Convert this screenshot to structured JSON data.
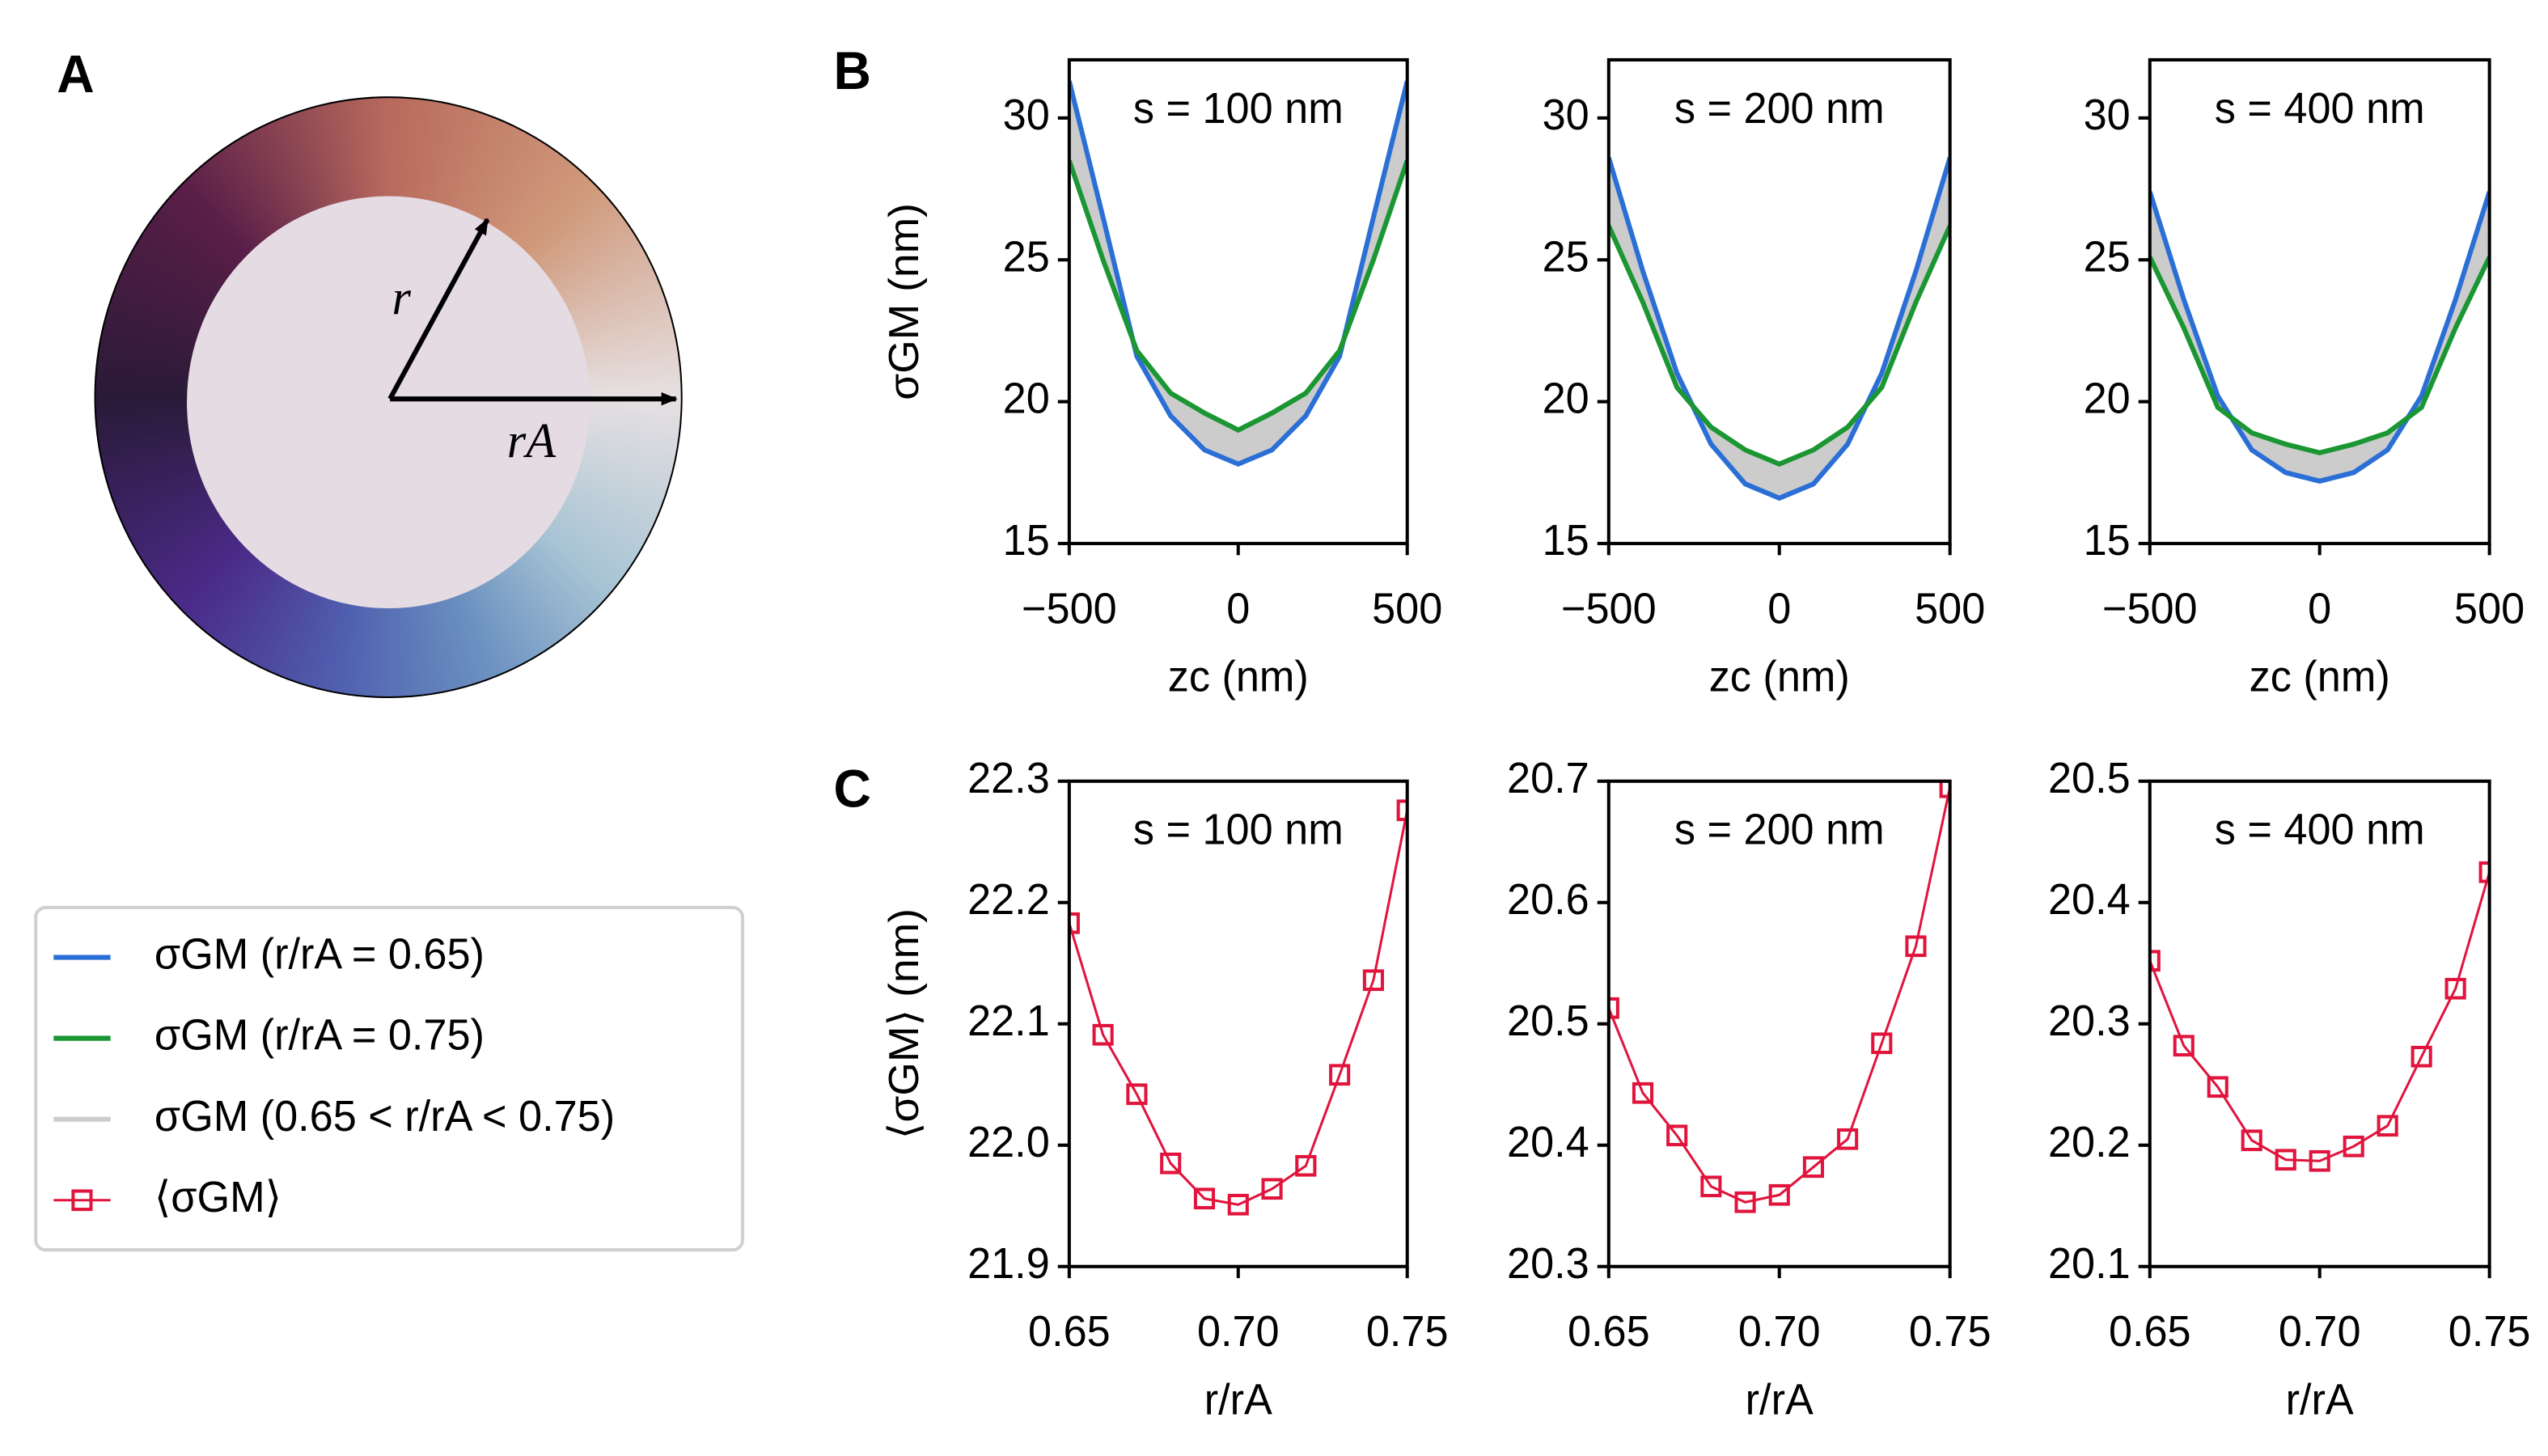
{
  "panel_labels": {
    "a": "A",
    "b": "B",
    "c": "C"
  },
  "diagram": {
    "r_label": "r",
    "ra_label": "rA"
  },
  "legend": {
    "entries": [
      {
        "name": "σGM (r/rA = 0.65)",
        "color": "#2b6fd6",
        "style": "line"
      },
      {
        "name": "σGM (r/rA = 0.75)",
        "color": "#1a9632",
        "style": "line"
      },
      {
        "name": "σGM (0.65 < r/rA < 0.75)",
        "color": "#cccccc",
        "style": "line"
      },
      {
        "name": "⟨σGM⟩",
        "color": "#e0143c",
        "style": "line-square"
      }
    ]
  },
  "chart_data": [
    {
      "type": "line",
      "annotation": "s = 100 nm",
      "xlabel": "zc (nm)",
      "ylabel": "σGM (nm)",
      "x": [
        -500,
        -400,
        -300,
        -200,
        -100,
        0,
        100,
        200,
        300,
        400,
        500
      ],
      "series": [
        {
          "color": "#2b6fd6",
          "values": [
            31.3,
            26.5,
            21.6,
            19.5,
            18.3,
            17.8,
            18.3,
            19.5,
            21.6,
            26.5,
            31.3
          ]
        },
        {
          "color": "#1a9632",
          "values": [
            28.5,
            25.0,
            21.8,
            20.3,
            19.6,
            19.0,
            19.6,
            20.3,
            21.8,
            25.0,
            28.5
          ]
        }
      ],
      "fill_between": {
        "series": [
          0,
          1
        ],
        "color": "#cccccc"
      },
      "xlim": [
        -500,
        500
      ],
      "ylim": [
        15,
        32.05
      ],
      "xticks": [
        {
          "value": -500,
          "label": "−500"
        },
        0,
        500
      ],
      "yticks": [
        15,
        20,
        25,
        30
      ]
    },
    {
      "type": "line",
      "annotation": "s = 200 nm",
      "xlabel": "zc (nm)",
      "x": [
        -500,
        -400,
        -300,
        -200,
        -100,
        0,
        100,
        200,
        300,
        400,
        500
      ],
      "series": [
        {
          "color": "#2b6fd6",
          "values": [
            28.6,
            24.6,
            21.0,
            18.5,
            17.1,
            16.6,
            17.1,
            18.5,
            21.0,
            24.6,
            28.6
          ]
        },
        {
          "color": "#1a9632",
          "values": [
            26.2,
            23.5,
            20.5,
            19.1,
            18.3,
            17.8,
            18.3,
            19.1,
            20.5,
            23.5,
            26.2
          ]
        }
      ],
      "fill_between": {
        "series": [
          0,
          1
        ],
        "color": "#cccccc"
      },
      "xlim": [
        -500,
        500
      ],
      "ylim": [
        15,
        32.05
      ],
      "xticks": [
        {
          "value": -500,
          "label": "−500"
        },
        0,
        500
      ],
      "yticks": [
        15,
        20,
        25,
        30
      ]
    },
    {
      "type": "line",
      "annotation": "s = 400 nm",
      "xlabel": "zc (nm)",
      "x": [
        -500,
        -400,
        -300,
        -200,
        -100,
        0,
        100,
        200,
        300,
        400,
        500
      ],
      "series": [
        {
          "color": "#2b6fd6",
          "values": [
            27.4,
            23.6,
            20.2,
            18.3,
            17.5,
            17.2,
            17.5,
            18.3,
            20.2,
            23.6,
            27.4
          ]
        },
        {
          "color": "#1a9632",
          "values": [
            25.1,
            22.6,
            19.8,
            18.9,
            18.5,
            18.2,
            18.5,
            18.9,
            19.8,
            22.6,
            25.1
          ]
        }
      ],
      "fill_between": {
        "series": [
          0,
          1
        ],
        "color": "#cccccc"
      },
      "xlim": [
        -500,
        500
      ],
      "ylim": [
        15,
        32.05
      ],
      "xticks": [
        {
          "value": -500,
          "label": "−500"
        },
        0,
        500
      ],
      "yticks": [
        15,
        20,
        25,
        30
      ]
    },
    {
      "type": "line",
      "annotation": "s = 100 nm",
      "xlabel": "r/rA",
      "ylabel": "⟨σGM⟩ (nm)",
      "x": [
        0.65,
        0.66,
        0.67,
        0.68,
        0.69,
        0.7,
        0.71,
        0.72,
        0.73,
        0.74,
        0.75
      ],
      "series": [
        {
          "color": "#e0143c",
          "marker": "square",
          "values": [
            22.183,
            22.091,
            22.042,
            21.985,
            21.956,
            21.951,
            21.964,
            21.983,
            22.058,
            22.136,
            22.276
          ]
        }
      ],
      "xlim": [
        0.65,
        0.75
      ],
      "ylim": [
        21.9,
        22.3
      ],
      "xticks": [
        0.65,
        {
          "value": 0.7,
          "label": "0.70"
        },
        0.75
      ],
      "yticks": [
        21.9,
        {
          "value": 22,
          "label": "22.0"
        },
        22.1,
        22.2,
        22.3
      ]
    },
    {
      "type": "line",
      "annotation": "s = 200 nm",
      "xlabel": "r/rA",
      "x": [
        0.65,
        0.66,
        0.67,
        0.68,
        0.69,
        0.7,
        0.71,
        0.72,
        0.73,
        0.74,
        0.75
      ],
      "series": [
        {
          "color": "#e0143c",
          "marker": "square",
          "values": [
            20.513,
            20.443,
            20.408,
            20.366,
            20.353,
            20.359,
            20.382,
            20.405,
            20.484,
            20.564,
            20.695
          ]
        }
      ],
      "xlim": [
        0.65,
        0.75
      ],
      "ylim": [
        20.3,
        20.7
      ],
      "xticks": [
        0.65,
        {
          "value": 0.7,
          "label": "0.70"
        },
        0.75
      ],
      "yticks": [
        20.3,
        20.4,
        20.5,
        20.6,
        20.7
      ]
    },
    {
      "type": "line",
      "annotation": "s = 400 nm",
      "xlabel": "r/rA",
      "x": [
        0.65,
        0.66,
        0.67,
        0.68,
        0.69,
        0.7,
        0.71,
        0.72,
        0.73,
        0.74,
        0.75
      ],
      "series": [
        {
          "color": "#e0143c",
          "marker": "square",
          "values": [
            20.352,
            20.282,
            20.248,
            20.204,
            20.188,
            20.187,
            20.199,
            20.216,
            20.273,
            20.329,
            20.425
          ]
        }
      ],
      "xlim": [
        0.65,
        0.75
      ],
      "ylim": [
        20.1,
        20.5
      ],
      "xticks": [
        0.65,
        {
          "value": 0.7,
          "label": "0.70"
        },
        0.75
      ],
      "yticks": [
        20.1,
        20.2,
        20.3,
        20.4,
        20.5
      ]
    }
  ]
}
